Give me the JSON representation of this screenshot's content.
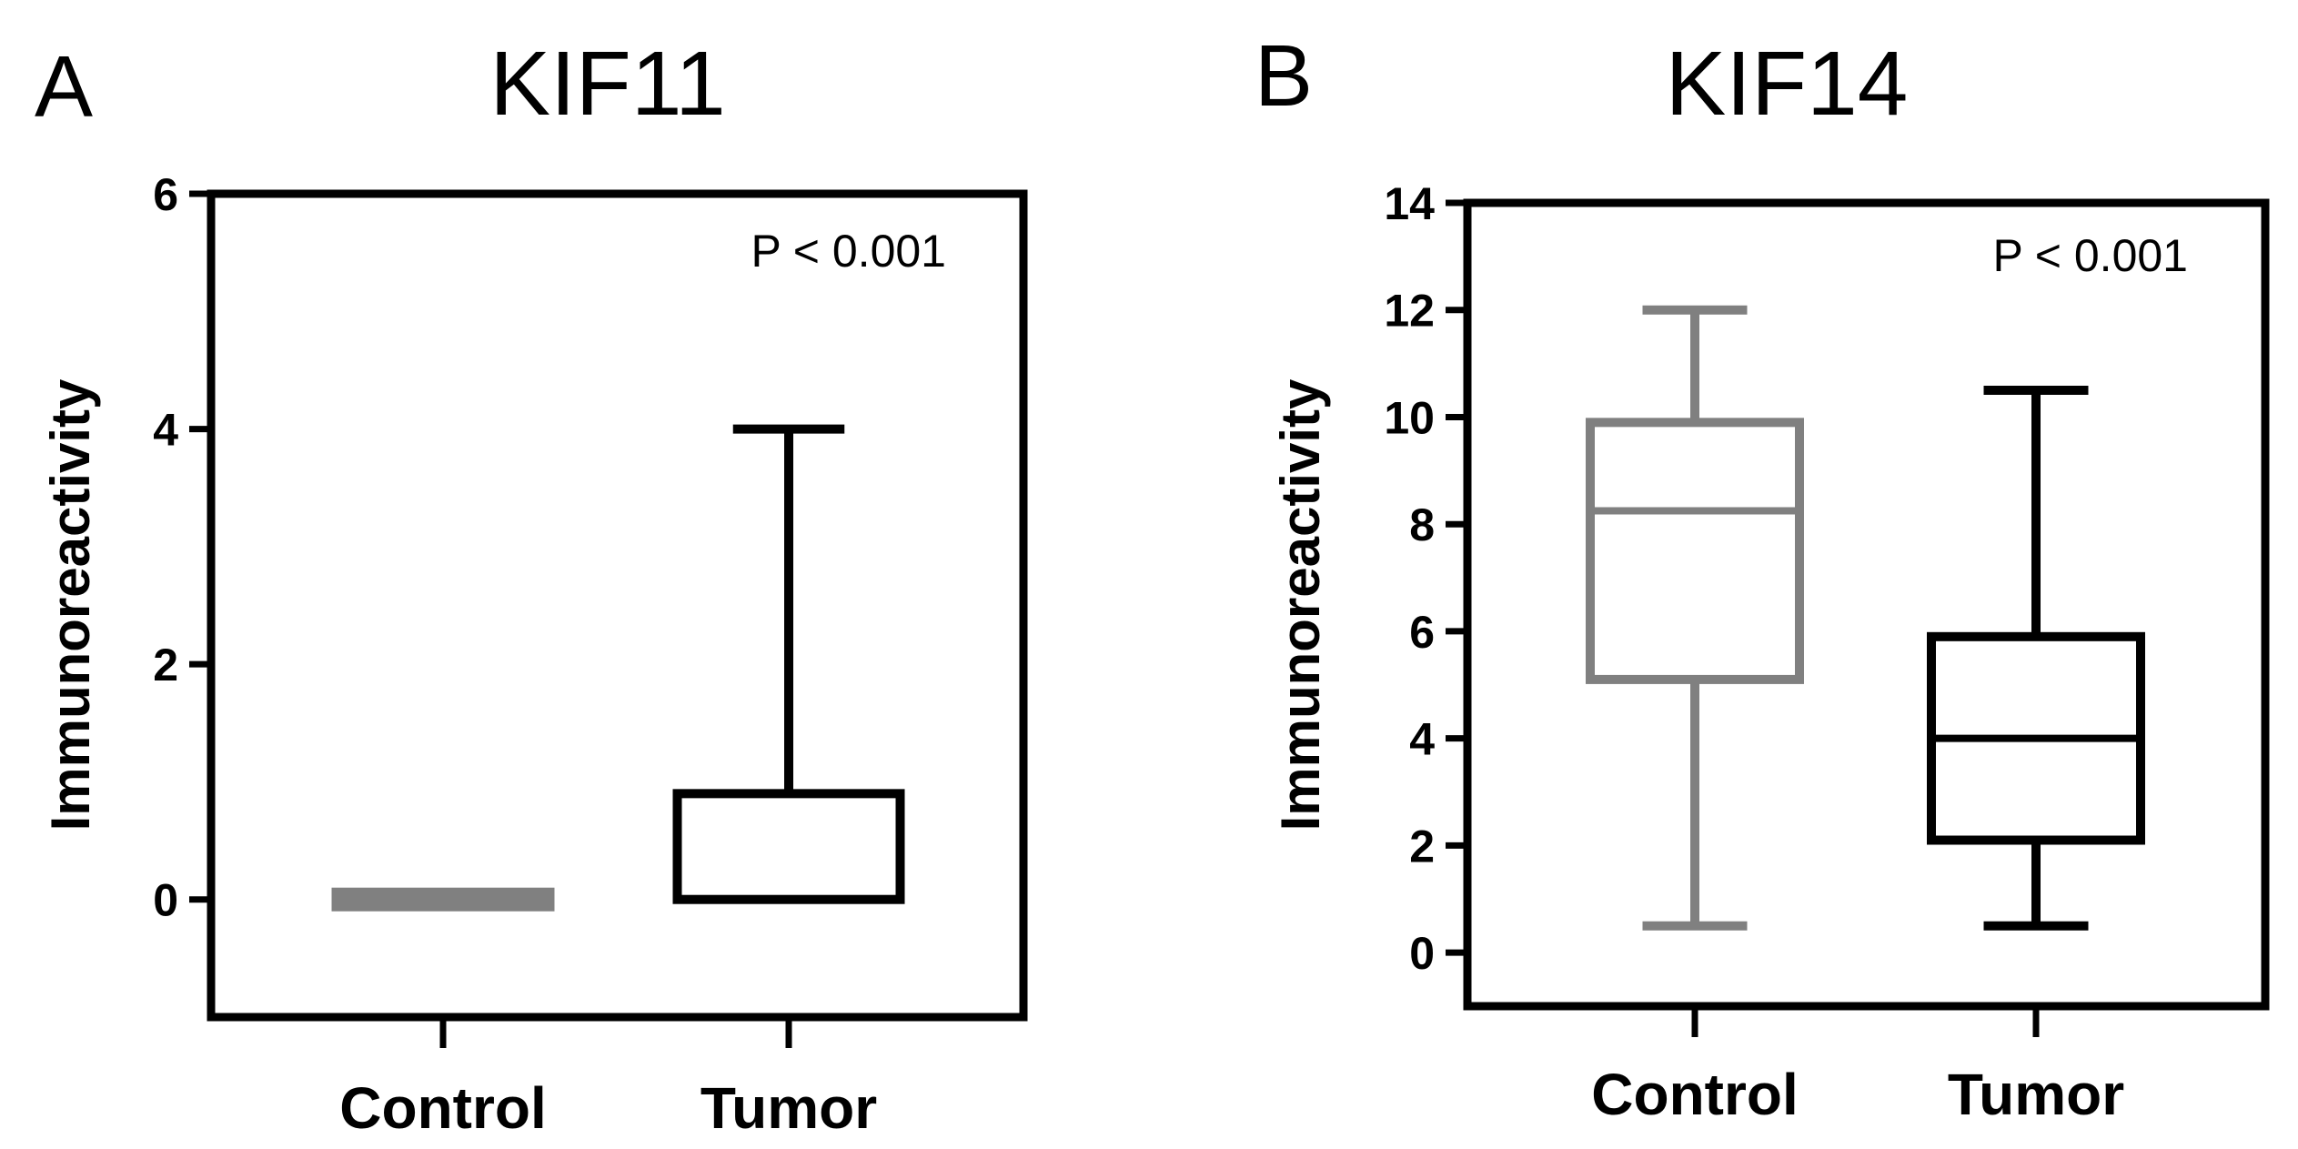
{
  "chart_data": [
    {
      "type": "box",
      "panel_label": "A",
      "title": "KIF11",
      "ylabel": "Immunoreactivity",
      "xlabel": "",
      "ylim": [
        -1,
        6
      ],
      "yticks": [
        "0",
        "2",
        "4",
        "6"
      ],
      "annotation": "P < 0.001",
      "grid": false,
      "categories": [
        "Control",
        "Tumor"
      ],
      "boxes": [
        {
          "name": "Control",
          "color": "#808080",
          "min": 0,
          "q1": 0,
          "median": 0,
          "q3": 0,
          "max": 0
        },
        {
          "name": "Tumor",
          "color": "#000000",
          "min": 0,
          "q1": 0,
          "median": 0,
          "q3": 0.9,
          "max": 4
        }
      ]
    },
    {
      "type": "box",
      "panel_label": "B",
      "title": "KIF14",
      "ylabel": "Immunoreactivity",
      "xlabel": "",
      "ylim": [
        -1,
        14
      ],
      "yticks": [
        "0",
        "2",
        "4",
        "6",
        "8",
        "10",
        "12",
        "14"
      ],
      "annotation": "P < 0.001",
      "grid": false,
      "categories": [
        "Control",
        "Tumor"
      ],
      "boxes": [
        {
          "name": "Control",
          "color": "#808080",
          "min": 0.5,
          "q1": 5.1,
          "median": 8.25,
          "q3": 9.9,
          "max": 12
        },
        {
          "name": "Tumor",
          "color": "#000000",
          "min": 0.5,
          "q1": 2.1,
          "median": 4.0,
          "q3": 5.9,
          "max": 10.5
        }
      ]
    }
  ]
}
